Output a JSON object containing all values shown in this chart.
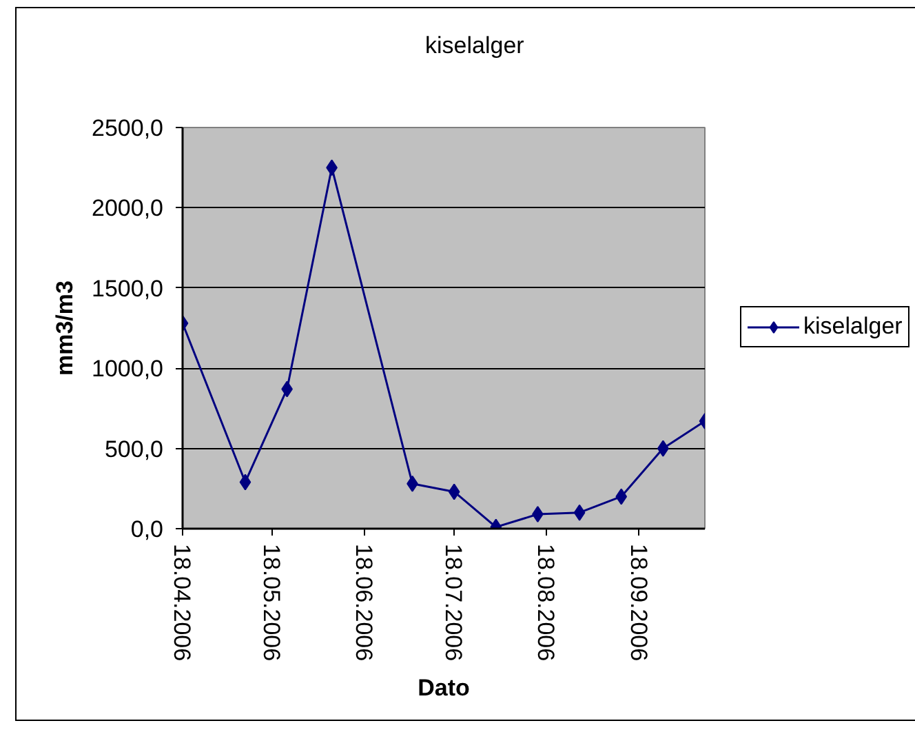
{
  "chart_data": {
    "type": "line",
    "title": "kiselalger",
    "xlabel": "Dato",
    "ylabel": "mm3/m3",
    "x": [
      "2006-04-18",
      "2006-05-09",
      "2006-05-23",
      "2006-06-07",
      "2006-07-04",
      "2006-07-18",
      "2006-08-01",
      "2006-08-15",
      "2006-08-29",
      "2006-09-12",
      "2006-09-26",
      "2006-10-10"
    ],
    "series": [
      {
        "name": "kiselalger",
        "color": "#000080",
        "values": [
          1280,
          290,
          870,
          2250,
          280,
          230,
          10,
          90,
          100,
          200,
          500,
          670
        ]
      }
    ],
    "xlim": [
      "2006-04-18",
      "2006-10-10"
    ],
    "xticks": [
      {
        "value": "2006-04-18",
        "label": "18.04.2006"
      },
      {
        "value": "2006-05-18",
        "label": "18.05.2006"
      },
      {
        "value": "2006-06-18",
        "label": "18.06.2006"
      },
      {
        "value": "2006-07-18",
        "label": "18.07.2006"
      },
      {
        "value": "2006-08-18",
        "label": "18.08.2006"
      },
      {
        "value": "2006-09-18",
        "label": "18.09.2006"
      }
    ],
    "ylim": [
      0,
      2500
    ],
    "yticks": [
      {
        "value": 0,
        "label": "0,0"
      },
      {
        "value": 500,
        "label": "500,0"
      },
      {
        "value": 1000,
        "label": "1000,0"
      },
      {
        "value": 1500,
        "label": "1500,0"
      },
      {
        "value": 2000,
        "label": "2000,0"
      },
      {
        "value": 2500,
        "label": "2500,0"
      }
    ],
    "grid": "y",
    "legend": "right",
    "marker": "diamond",
    "line_style": "solid"
  }
}
